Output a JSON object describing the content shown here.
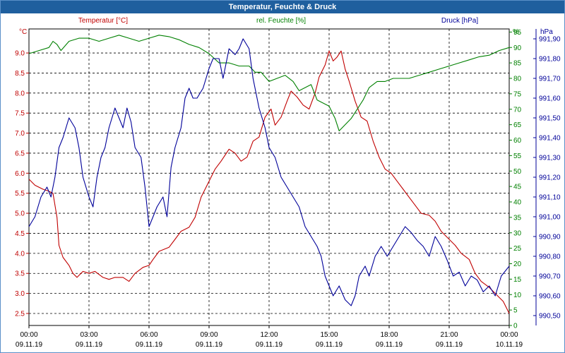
{
  "window": {
    "title": "Temperatur, Feuchte & Druck"
  },
  "chart_data": {
    "type": "line",
    "title": "Temperatur, Feuchte & Druck",
    "colors": {
      "temperature": "#c00000",
      "humidity": "#008000",
      "pressure": "#000099",
      "grid": "#000000"
    },
    "axes": {
      "left": {
        "unit": "°C",
        "ylim": [
          2.2,
          9.6
        ],
        "ticks": [
          "2.5",
          "3.0",
          "3.5",
          "4.0",
          "4.5",
          "5.0",
          "5.5",
          "6.0",
          "6.5",
          "7.0",
          "7.5",
          "8.0",
          "8.5",
          "9.0"
        ]
      },
      "right1": {
        "unit": "%",
        "ylim": [
          0,
          96
        ],
        "ticks": [
          "0",
          "5",
          "10",
          "15",
          "20",
          "25",
          "30",
          "35",
          "40",
          "45",
          "50",
          "55",
          "60",
          "65",
          "70",
          "75",
          "80",
          "85",
          "90",
          "95"
        ]
      },
      "right2": {
        "unit": "hPa",
        "ylim": [
          990.45,
          991.95
        ],
        "ticks": [
          "990,50",
          "990,60",
          "990,70",
          "990,80",
          "990,90",
          "991,00",
          "991,10",
          "991,20",
          "991,30",
          "991,40",
          "991,50",
          "991,60",
          "991,70",
          "991,80",
          "991,90"
        ]
      }
    },
    "x_ticks": [
      {
        "time": "00:00",
        "date": "09.11.19"
      },
      {
        "time": "03:00",
        "date": "09.11.19"
      },
      {
        "time": "06:00",
        "date": "09.11.19"
      },
      {
        "time": "09:00",
        "date": "09.11.19"
      },
      {
        "time": "12:00",
        "date": "09.11.19"
      },
      {
        "time": "15:00",
        "date": "09.11.19"
      },
      {
        "time": "18:00",
        "date": "09.11.19"
      },
      {
        "time": "21:00",
        "date": "09.11.19"
      },
      {
        "time": "00:00",
        "date": "10.11.19"
      }
    ],
    "xlim_hours": [
      0,
      24
    ],
    "series": [
      {
        "name": "Temperatur [°C]",
        "axis": "left",
        "color_key": "temperature",
        "points": [
          [
            0,
            5.85
          ],
          [
            0.3,
            5.7
          ],
          [
            0.7,
            5.6
          ],
          [
            1,
            5.55
          ],
          [
            1.2,
            5.5
          ],
          [
            1.4,
            4.9
          ],
          [
            1.5,
            4.2
          ],
          [
            1.7,
            3.9
          ],
          [
            2,
            3.7
          ],
          [
            2.2,
            3.5
          ],
          [
            2.4,
            3.4
          ],
          [
            2.7,
            3.55
          ],
          [
            3,
            3.5
          ],
          [
            3.3,
            3.55
          ],
          [
            3.7,
            3.4
          ],
          [
            4,
            3.35
          ],
          [
            4.3,
            3.4
          ],
          [
            4.7,
            3.4
          ],
          [
            5,
            3.3
          ],
          [
            5.3,
            3.5
          ],
          [
            5.7,
            3.65
          ],
          [
            6,
            3.7
          ],
          [
            6.2,
            3.85
          ],
          [
            6.5,
            4.05
          ],
          [
            7,
            4.15
          ],
          [
            7.3,
            4.35
          ],
          [
            7.6,
            4.55
          ],
          [
            8,
            4.65
          ],
          [
            8.3,
            4.9
          ],
          [
            8.6,
            5.4
          ],
          [
            9,
            5.8
          ],
          [
            9.3,
            6.1
          ],
          [
            9.6,
            6.3
          ],
          [
            10,
            6.6
          ],
          [
            10.3,
            6.5
          ],
          [
            10.6,
            6.3
          ],
          [
            10.9,
            6.4
          ],
          [
            11.2,
            6.8
          ],
          [
            11.5,
            6.9
          ],
          [
            11.8,
            7.4
          ],
          [
            12.1,
            7.6
          ],
          [
            12.3,
            7.2
          ],
          [
            12.6,
            7.4
          ],
          [
            12.9,
            7.8
          ],
          [
            13.1,
            8.05
          ],
          [
            13.4,
            7.9
          ],
          [
            13.7,
            7.7
          ],
          [
            14,
            7.6
          ],
          [
            14.3,
            8.0
          ],
          [
            14.5,
            8.4
          ],
          [
            14.8,
            8.7
          ],
          [
            15,
            9.05
          ],
          [
            15.2,
            8.8
          ],
          [
            15.4,
            8.9
          ],
          [
            15.6,
            9.05
          ],
          [
            15.8,
            8.6
          ],
          [
            16,
            8.3
          ],
          [
            16.3,
            7.8
          ],
          [
            16.6,
            7.4
          ],
          [
            16.9,
            7.3
          ],
          [
            17.2,
            6.8
          ],
          [
            17.5,
            6.4
          ],
          [
            17.8,
            6.1
          ],
          [
            18.1,
            6.0
          ],
          [
            18.4,
            5.8
          ],
          [
            18.7,
            5.6
          ],
          [
            19,
            5.4
          ],
          [
            19.3,
            5.2
          ],
          [
            19.6,
            5.0
          ],
          [
            20,
            4.95
          ],
          [
            20.3,
            4.8
          ],
          [
            20.6,
            4.55
          ],
          [
            21,
            4.35
          ],
          [
            21.3,
            4.2
          ],
          [
            21.6,
            4.0
          ],
          [
            22,
            3.85
          ],
          [
            22.3,
            3.5
          ],
          [
            22.6,
            3.3
          ],
          [
            23,
            3.15
          ],
          [
            23.3,
            3.0
          ],
          [
            23.5,
            2.9
          ],
          [
            23.7,
            2.8
          ],
          [
            23.9,
            2.6
          ],
          [
            24,
            2.5
          ]
        ]
      },
      {
        "name": "rel. Feuchte [%]",
        "axis": "right1",
        "color_key": "humidity",
        "points": [
          [
            0,
            88
          ],
          [
            0.5,
            89
          ],
          [
            1,
            90
          ],
          [
            1.2,
            92
          ],
          [
            1.4,
            91
          ],
          [
            1.6,
            89
          ],
          [
            2,
            92
          ],
          [
            2.5,
            93
          ],
          [
            3,
            93
          ],
          [
            3.5,
            92
          ],
          [
            4,
            93
          ],
          [
            4.5,
            94
          ],
          [
            5,
            93
          ],
          [
            5.5,
            92
          ],
          [
            6,
            93
          ],
          [
            6.5,
            94
          ],
          [
            7,
            93.5
          ],
          [
            7.5,
            92.5
          ],
          [
            8,
            91
          ],
          [
            8.5,
            90
          ],
          [
            9,
            88
          ],
          [
            9.5,
            85
          ],
          [
            10,
            85
          ],
          [
            10.5,
            84
          ],
          [
            11,
            84
          ],
          [
            11.3,
            82
          ],
          [
            11.6,
            82
          ],
          [
            12,
            79
          ],
          [
            12.4,
            80
          ],
          [
            12.8,
            81
          ],
          [
            13.2,
            79
          ],
          [
            13.5,
            76
          ],
          [
            13.8,
            77
          ],
          [
            14.1,
            78
          ],
          [
            14.4,
            73
          ],
          [
            14.7,
            72
          ],
          [
            15,
            71
          ],
          [
            15.3,
            67
          ],
          [
            15.5,
            63
          ],
          [
            15.8,
            65
          ],
          [
            16.1,
            67
          ],
          [
            16.4,
            70
          ],
          [
            16.7,
            73
          ],
          [
            17,
            77
          ],
          [
            17.4,
            79
          ],
          [
            17.8,
            79
          ],
          [
            18.2,
            80
          ],
          [
            18.6,
            80
          ],
          [
            19,
            80
          ],
          [
            19.5,
            81
          ],
          [
            20,
            82
          ],
          [
            20.5,
            83
          ],
          [
            21,
            84
          ],
          [
            21.5,
            85
          ],
          [
            22,
            86
          ],
          [
            22.5,
            87
          ],
          [
            23,
            87.5
          ],
          [
            23.5,
            89
          ],
          [
            24,
            90
          ]
        ]
      },
      {
        "name": "Druck [hPa]",
        "axis": "right2",
        "color_key": "pressure",
        "points": [
          [
            0,
            990.95
          ],
          [
            0.3,
            991.0
          ],
          [
            0.6,
            991.1
          ],
          [
            0.9,
            991.15
          ],
          [
            1.1,
            991.1
          ],
          [
            1.3,
            991.2
          ],
          [
            1.5,
            991.35
          ],
          [
            1.7,
            991.4
          ],
          [
            2.0,
            991.5
          ],
          [
            2.3,
            991.45
          ],
          [
            2.5,
            991.35
          ],
          [
            2.7,
            991.2
          ],
          [
            3.0,
            991.1
          ],
          [
            3.2,
            991.05
          ],
          [
            3.4,
            991.2
          ],
          [
            3.6,
            991.3
          ],
          [
            3.8,
            991.35
          ],
          [
            4.0,
            991.45
          ],
          [
            4.3,
            991.55
          ],
          [
            4.5,
            991.5
          ],
          [
            4.7,
            991.45
          ],
          [
            4.9,
            991.55
          ],
          [
            5.1,
            991.48
          ],
          [
            5.3,
            991.35
          ],
          [
            5.6,
            991.3
          ],
          [
            5.8,
            991.15
          ],
          [
            6.0,
            990.95
          ],
          [
            6.2,
            991.0
          ],
          [
            6.4,
            991.05
          ],
          [
            6.7,
            991.1
          ],
          [
            6.9,
            991.0
          ],
          [
            7.1,
            991.25
          ],
          [
            7.3,
            991.35
          ],
          [
            7.6,
            991.45
          ],
          [
            7.8,
            991.6
          ],
          [
            8.0,
            991.65
          ],
          [
            8.2,
            991.6
          ],
          [
            8.4,
            991.6
          ],
          [
            8.7,
            991.65
          ],
          [
            9.0,
            991.75
          ],
          [
            9.2,
            991.8
          ],
          [
            9.5,
            991.8
          ],
          [
            9.7,
            991.7
          ],
          [
            10.0,
            991.85
          ],
          [
            10.3,
            991.82
          ],
          [
            10.5,
            991.85
          ],
          [
            10.7,
            991.9
          ],
          [
            11.0,
            991.85
          ],
          [
            11.2,
            991.7
          ],
          [
            11.5,
            991.55
          ],
          [
            11.8,
            991.45
          ],
          [
            12.0,
            991.35
          ],
          [
            12.3,
            991.3
          ],
          [
            12.6,
            991.2
          ],
          [
            12.9,
            991.15
          ],
          [
            13.2,
            991.1
          ],
          [
            13.5,
            991.05
          ],
          [
            13.8,
            990.95
          ],
          [
            14.1,
            990.9
          ],
          [
            14.4,
            990.85
          ],
          [
            14.6,
            990.8
          ],
          [
            14.8,
            990.7
          ],
          [
            15.0,
            990.65
          ],
          [
            15.2,
            990.6
          ],
          [
            15.5,
            990.65
          ],
          [
            15.8,
            990.58
          ],
          [
            16.1,
            990.55
          ],
          [
            16.3,
            990.6
          ],
          [
            16.5,
            990.7
          ],
          [
            16.8,
            990.75
          ],
          [
            17.0,
            990.7
          ],
          [
            17.3,
            990.8
          ],
          [
            17.6,
            990.85
          ],
          [
            17.9,
            990.8
          ],
          [
            18.2,
            990.85
          ],
          [
            18.5,
            990.9
          ],
          [
            18.8,
            990.95
          ],
          [
            19.1,
            990.92
          ],
          [
            19.4,
            990.88
          ],
          [
            19.7,
            990.85
          ],
          [
            20.0,
            990.8
          ],
          [
            20.3,
            990.9
          ],
          [
            20.6,
            990.85
          ],
          [
            20.9,
            990.78
          ],
          [
            21.2,
            990.7
          ],
          [
            21.5,
            990.72
          ],
          [
            21.8,
            990.65
          ],
          [
            22.1,
            990.7
          ],
          [
            22.4,
            990.68
          ],
          [
            22.7,
            990.62
          ],
          [
            23.0,
            990.65
          ],
          [
            23.3,
            990.6
          ],
          [
            23.6,
            990.7
          ],
          [
            24.0,
            990.75
          ]
        ]
      }
    ]
  }
}
